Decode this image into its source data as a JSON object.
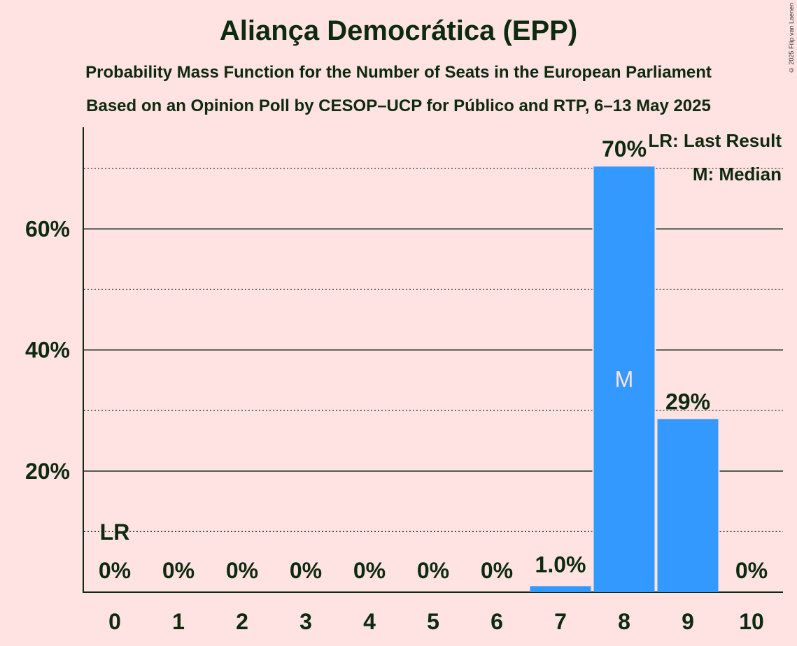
{
  "title": "Aliança Democrática (EPP)",
  "subtitle_line1": "Probability Mass Function for the Number of Seats in the European Parliament",
  "subtitle_line2": "Based on an Opinion Poll by CESOP–UCP for Público and RTP, 6–13 May 2025",
  "copyright": "© 2025 Filip van Laenen",
  "colors": {
    "background": "#FFE2E2",
    "bar": "#3399FF",
    "text": "#0E2A0E",
    "median_text": "#FFE2E2"
  },
  "legend": {
    "lr": "LR: Last Result",
    "m": "M: Median"
  },
  "chart_data": {
    "type": "bar",
    "categories": [
      "0",
      "1",
      "2",
      "3",
      "4",
      "5",
      "6",
      "7",
      "8",
      "9",
      "10"
    ],
    "values": [
      0,
      0,
      0,
      0,
      0,
      0,
      0,
      1.0,
      70.3,
      28.6,
      0
    ],
    "data_labels": [
      "0%",
      "0%",
      "0%",
      "0%",
      "0%",
      "0%",
      "0%",
      "1.0%",
      "70%",
      "29%",
      "0%"
    ],
    "ylim": [
      0,
      77
    ],
    "yticks": [
      20,
      40,
      60
    ],
    "ytick_labels": [
      "20%",
      "40%",
      "60%"
    ],
    "minor_gridlines": [
      10,
      30,
      50,
      70
    ],
    "last_result": {
      "category": "0",
      "label": "LR"
    },
    "median": {
      "category": "8",
      "label": "M"
    },
    "legend_position": "top-right"
  }
}
